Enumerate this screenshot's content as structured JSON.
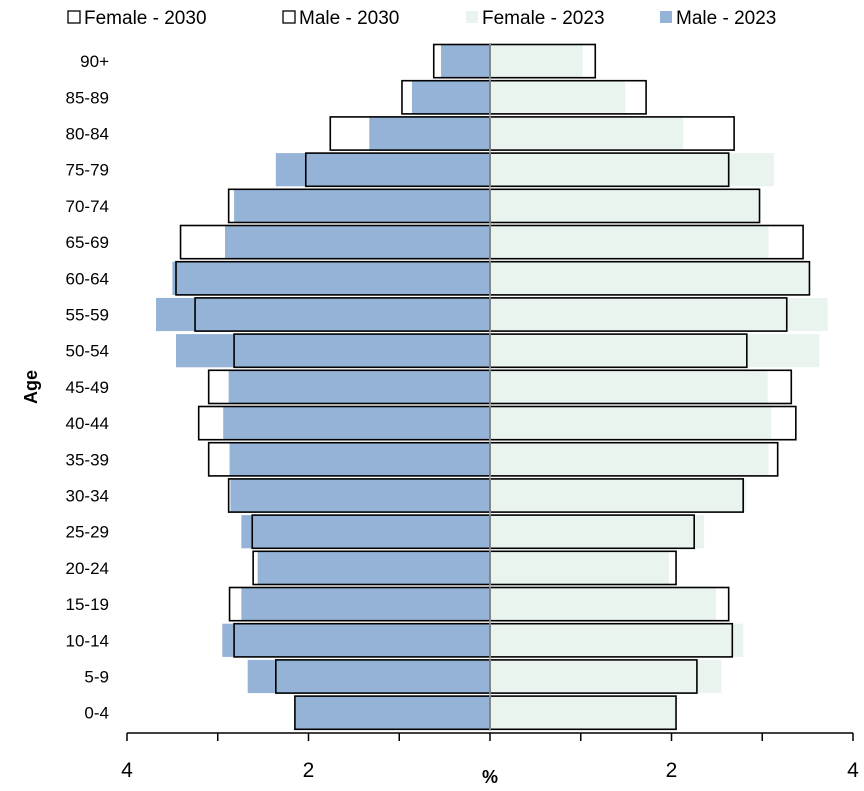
{
  "chart_data": {
    "type": "bar",
    "orientation": "horizontal",
    "layout": "population-pyramid",
    "xlabel": "%",
    "ylabel": "Age",
    "xlim": [
      -4,
      4
    ],
    "x_tick_values": [
      -4,
      -2,
      2,
      4
    ],
    "x_tick_labels": [
      "4",
      "2",
      "2",
      "4"
    ],
    "categories": [
      "0-4",
      "5-9",
      "10-14",
      "15-19",
      "20-24",
      "25-29",
      "30-34",
      "35-39",
      "40-44",
      "45-49",
      "50-54",
      "55-59",
      "60-64",
      "65-69",
      "70-74",
      "75-79",
      "80-84",
      "85-89",
      "90+"
    ],
    "series": [
      {
        "name": "Female - 2030",
        "side": "right",
        "style": "outline",
        "values": [
          2.05,
          2.28,
          2.67,
          2.63,
          2.05,
          2.25,
          2.79,
          3.17,
          3.37,
          3.32,
          2.83,
          3.27,
          3.52,
          3.45,
          2.97,
          2.63,
          2.69,
          1.72,
          1.16
        ]
      },
      {
        "name": "Male - 2030",
        "side": "left",
        "style": "outline",
        "values": [
          2.15,
          2.36,
          2.82,
          2.87,
          2.61,
          2.62,
          2.88,
          3.1,
          3.21,
          3.1,
          2.82,
          3.25,
          3.46,
          3.41,
          2.88,
          2.03,
          1.76,
          0.97,
          0.62
        ]
      },
      {
        "name": "Female - 2023",
        "side": "right",
        "style": "fill",
        "values": [
          2.05,
          2.55,
          2.79,
          2.49,
          1.97,
          2.36,
          2.82,
          3.07,
          3.1,
          3.06,
          3.63,
          3.72,
          3.51,
          3.07,
          2.97,
          3.13,
          2.13,
          1.49,
          1.02
        ]
      },
      {
        "name": "Male - 2023",
        "side": "left",
        "style": "fill",
        "values": [
          2.15,
          2.67,
          2.95,
          2.74,
          2.56,
          2.74,
          2.86,
          2.87,
          2.94,
          2.88,
          3.46,
          3.68,
          3.5,
          2.92,
          2.82,
          2.36,
          1.33,
          0.86,
          0.54
        ]
      }
    ],
    "legend_position": "top",
    "grid": false
  },
  "colors": {
    "male_2023": "#95b3d7",
    "female_2023": "#e9f4ef",
    "outline": "#000000",
    "axis": "#000000",
    "center_line": "#a6a6a6"
  }
}
